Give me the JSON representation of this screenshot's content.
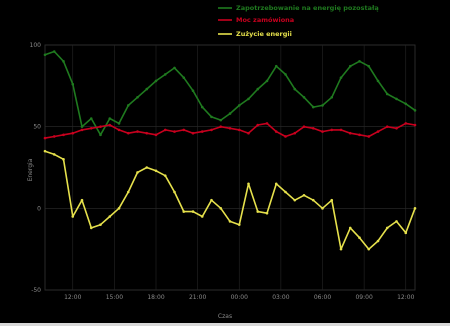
{
  "chart_data": {
    "type": "line",
    "title": "",
    "xlabel": "Czas",
    "ylabel": "Energia",
    "x": [
      "09:00",
      "10:00",
      "11:00",
      "12:00",
      "13:00",
      "14:00",
      "15:00",
      "16:00",
      "17:00",
      "18:00",
      "19:00",
      "20:00",
      "21:00",
      "22:00",
      "23:00",
      "00:00",
      "01:00",
      "02:00",
      "03:00",
      "04:00",
      "05:00",
      "06:00",
      "07:00",
      "08:00",
      "09:00",
      "10:00",
      "11:00",
      "12:00",
      "13:00",
      "14:00",
      "15:00",
      "16:00",
      "17:00",
      "18:00",
      "19:00",
      "20:00",
      "21:00",
      "22:00",
      "23:00",
      "00:00",
      "01:00"
    ],
    "x_tick_labels": [
      "12:00",
      "15:00",
      "18:00",
      "21:00",
      "00:00",
      "03:00",
      "06:00",
      "09:00",
      "12:00"
    ],
    "y_tick_labels": [
      "100",
      "50",
      "0",
      "-50"
    ],
    "ylim": [
      -50,
      100
    ],
    "grid": true,
    "legend_position": "top-right",
    "series": [
      {
        "name": "Zapotrzebowanie na energię pozostałą",
        "color": "#1f7a1f",
        "values": [
          94,
          96,
          90,
          76,
          50,
          55,
          45,
          55,
          52,
          63,
          68,
          73,
          78,
          82,
          86,
          80,
          72,
          62,
          56,
          54,
          58,
          63,
          67,
          73,
          78,
          87,
          82,
          73,
          68,
          62,
          63,
          68,
          80,
          87,
          90,
          87,
          78,
          70,
          67,
          64,
          60
        ]
      },
      {
        "name": "Moc zamówiona",
        "color": "#c8001e",
        "values": [
          43,
          44,
          45,
          46,
          48,
          49,
          50,
          51,
          48,
          46,
          47,
          46,
          45,
          48,
          47,
          48,
          46,
          47,
          48,
          50,
          49,
          48,
          46,
          51,
          52,
          47,
          44,
          46,
          50,
          49,
          47,
          48,
          48,
          46,
          45,
          44,
          47,
          50,
          49,
          52,
          51
        ]
      },
      {
        "name": "Zużycie energii",
        "color": "#e6e14c",
        "values": [
          35,
          33,
          30,
          -5,
          5,
          -12,
          -10,
          -5,
          0,
          10,
          22,
          25,
          23,
          20,
          10,
          -2,
          -2,
          -5,
          5,
          0,
          -8,
          -10,
          15,
          -2,
          -3,
          15,
          10,
          5,
          8,
          5,
          0,
          5,
          -25,
          -12,
          -18,
          -25,
          -20,
          -12,
          -8,
          -15,
          0
        ]
      }
    ]
  }
}
